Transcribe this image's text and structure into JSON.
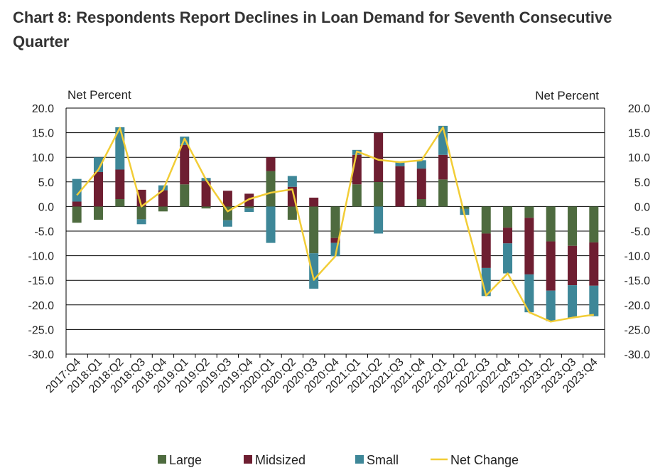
{
  "colors": {
    "large": "#4e6b3f",
    "midsized": "#6e1e31",
    "small": "#3e8798",
    "net": "#f2cd37",
    "grid": "#000000"
  },
  "chart_data": {
    "type": "bar",
    "stacked": true,
    "title": "Chart 8: Respondents Report Declines in Loan Demand for Seventh Consecutive Quarter",
    "ylabel_left": "Net Percent",
    "ylabel_right": "Net Percent",
    "ylim": [
      -30,
      20
    ],
    "ytick_step": 5,
    "yticks": [
      "20.0",
      "15.0",
      "10.0",
      "5.0",
      "0.0",
      "-5.0",
      "-10.0",
      "-15.0",
      "-20.0",
      "-25.0",
      "-30.0"
    ],
    "categories": [
      "2017:Q4",
      "2018:Q1",
      "2018:Q2",
      "2018:Q3",
      "2018:Q4",
      "2019:Q1",
      "2019:Q2",
      "2019:Q3",
      "2019:Q4",
      "2020:Q1",
      "2020:Q2",
      "2020:Q3",
      "2020:Q4",
      "2021:Q1",
      "2021:Q2",
      "2021:Q3",
      "2021:Q4",
      "2022:Q1",
      "2022:Q2",
      "2022:Q3",
      "2022:Q4",
      "2023:Q1",
      "2023:Q2",
      "2023:Q3",
      "2023:Q4"
    ],
    "series": [
      {
        "name": "Large",
        "kind": "bar",
        "values": [
          -3.3,
          -2.7,
          1.5,
          -2.6,
          -1.0,
          4.5,
          -0.4,
          -2.8,
          -0.4,
          7.2,
          -2.7,
          -9.5,
          -6.4,
          4.5,
          5.0,
          0.0,
          1.5,
          5.5,
          -0.5,
          -5.5,
          -4.3,
          -2.3,
          -7.1,
          -8.0,
          -7.3
        ]
      },
      {
        "name": "Midsized",
        "kind": "bar",
        "values": [
          1.0,
          7.0,
          6.0,
          3.4,
          3.3,
          8.0,
          5.2,
          3.2,
          2.6,
          2.8,
          4.0,
          1.8,
          -1.0,
          6.0,
          10.0,
          8.2,
          6.2,
          5.0,
          0.0,
          -7.0,
          -3.2,
          -11.5,
          -10.0,
          -8.0,
          -8.8
        ]
      },
      {
        "name": "Small",
        "kind": "bar",
        "values": [
          4.6,
          3.0,
          8.6,
          -1.0,
          1.0,
          1.7,
          0.6,
          -1.3,
          -0.7,
          -7.4,
          2.2,
          -7.2,
          -2.7,
          1.0,
          -5.5,
          0.8,
          1.7,
          5.9,
          -1.2,
          -5.7,
          -6.1,
          -7.7,
          -6.2,
          -6.6,
          -6.2
        ]
      },
      {
        "name": "Net Change",
        "kind": "line",
        "values": [
          2.3,
          7.5,
          16.0,
          0.0,
          3.3,
          13.8,
          5.4,
          -1.0,
          1.5,
          2.8,
          3.5,
          -14.9,
          -10.1,
          11.2,
          9.5,
          9.0,
          9.4,
          16.1,
          -1.7,
          -18.1,
          -13.6,
          -21.5,
          -23.4,
          -22.6,
          -22.0
        ]
      }
    ],
    "legend": [
      "Large",
      "Midsized",
      "Small",
      "Net Change"
    ],
    "legend_position": "bottom"
  }
}
